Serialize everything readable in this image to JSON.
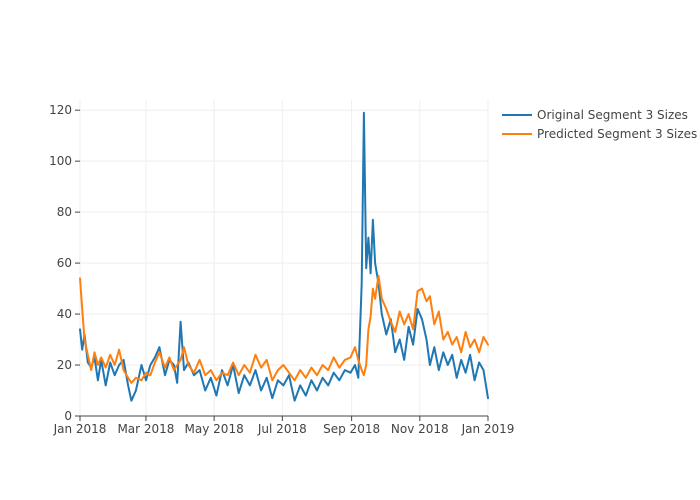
{
  "chart_data": {
    "type": "line",
    "title": "",
    "xlabel": "",
    "ylabel": "",
    "x_start": "2018-01-01",
    "x_end": "2019-01-01",
    "xlim": [
      "2018-01-01",
      "2019-01-01"
    ],
    "ylim": [
      0,
      124
    ],
    "grid": true,
    "legend_position": "top-right",
    "x_ticks": [
      {
        "date": "2018-01-01",
        "label": "Jan 2018"
      },
      {
        "date": "2018-03-01",
        "label": "Mar 2018"
      },
      {
        "date": "2018-05-01",
        "label": "May 2018"
      },
      {
        "date": "2018-07-01",
        "label": "Jul 2018"
      },
      {
        "date": "2018-09-01",
        "label": "Sep 2018"
      },
      {
        "date": "2018-11-01",
        "label": "Nov 2018"
      },
      {
        "date": "2019-01-01",
        "label": "Jan 2019"
      }
    ],
    "y_ticks": [
      0,
      20,
      40,
      60,
      80,
      100,
      120
    ],
    "series": [
      {
        "name": "Original Segment 3 Sizes",
        "color": "#1f77b4",
        "points": [
          [
            "2018-01-01",
            34
          ],
          [
            "2018-01-03",
            26
          ],
          [
            "2018-01-05",
            32
          ],
          [
            "2018-01-08",
            21
          ],
          [
            "2018-01-11",
            19
          ],
          [
            "2018-01-14",
            23
          ],
          [
            "2018-01-17",
            14
          ],
          [
            "2018-01-20",
            22
          ],
          [
            "2018-01-24",
            12
          ],
          [
            "2018-01-28",
            21
          ],
          [
            "2018-02-01",
            16
          ],
          [
            "2018-02-05",
            20
          ],
          [
            "2018-02-09",
            22
          ],
          [
            "2018-02-13",
            12
          ],
          [
            "2018-02-16",
            6
          ],
          [
            "2018-02-20",
            10
          ],
          [
            "2018-02-25",
            20
          ],
          [
            "2018-03-01",
            14
          ],
          [
            "2018-03-05",
            20
          ],
          [
            "2018-03-09",
            23
          ],
          [
            "2018-03-13",
            27
          ],
          [
            "2018-03-18",
            16
          ],
          [
            "2018-03-22",
            22
          ],
          [
            "2018-03-26",
            20
          ],
          [
            "2018-03-29",
            13
          ],
          [
            "2018-04-01",
            37
          ],
          [
            "2018-04-04",
            18
          ],
          [
            "2018-04-08",
            21
          ],
          [
            "2018-04-13",
            16
          ],
          [
            "2018-04-18",
            18
          ],
          [
            "2018-04-23",
            10
          ],
          [
            "2018-04-28",
            15
          ],
          [
            "2018-05-03",
            8
          ],
          [
            "2018-05-08",
            18
          ],
          [
            "2018-05-13",
            12
          ],
          [
            "2018-05-18",
            20
          ],
          [
            "2018-05-23",
            9
          ],
          [
            "2018-05-28",
            16
          ],
          [
            "2018-06-02",
            12
          ],
          [
            "2018-06-07",
            18
          ],
          [
            "2018-06-12",
            10
          ],
          [
            "2018-06-17",
            15
          ],
          [
            "2018-06-22",
            7
          ],
          [
            "2018-06-27",
            14
          ],
          [
            "2018-07-02",
            12
          ],
          [
            "2018-07-07",
            16
          ],
          [
            "2018-07-12",
            6
          ],
          [
            "2018-07-17",
            12
          ],
          [
            "2018-07-22",
            8
          ],
          [
            "2018-07-27",
            14
          ],
          [
            "2018-08-01",
            10
          ],
          [
            "2018-08-06",
            15
          ],
          [
            "2018-08-11",
            12
          ],
          [
            "2018-08-16",
            17
          ],
          [
            "2018-08-21",
            14
          ],
          [
            "2018-08-26",
            18
          ],
          [
            "2018-08-31",
            17
          ],
          [
            "2018-09-04",
            20
          ],
          [
            "2018-09-07",
            15
          ],
          [
            "2018-09-10",
            52
          ],
          [
            "2018-09-12",
            119
          ],
          [
            "2018-09-14",
            58
          ],
          [
            "2018-09-16",
            70
          ],
          [
            "2018-09-18",
            56
          ],
          [
            "2018-09-20",
            77
          ],
          [
            "2018-09-22",
            60
          ],
          [
            "2018-09-25",
            52
          ],
          [
            "2018-09-28",
            40
          ],
          [
            "2018-10-02",
            32
          ],
          [
            "2018-10-06",
            38
          ],
          [
            "2018-10-10",
            25
          ],
          [
            "2018-10-14",
            30
          ],
          [
            "2018-10-18",
            22
          ],
          [
            "2018-10-22",
            35
          ],
          [
            "2018-10-26",
            28
          ],
          [
            "2018-10-30",
            42
          ],
          [
            "2018-11-03",
            38
          ],
          [
            "2018-11-07",
            30
          ],
          [
            "2018-11-10",
            20
          ],
          [
            "2018-11-14",
            27
          ],
          [
            "2018-11-18",
            18
          ],
          [
            "2018-11-22",
            25
          ],
          [
            "2018-11-26",
            20
          ],
          [
            "2018-11-30",
            24
          ],
          [
            "2018-12-04",
            15
          ],
          [
            "2018-12-08",
            22
          ],
          [
            "2018-12-12",
            17
          ],
          [
            "2018-12-16",
            24
          ],
          [
            "2018-12-20",
            14
          ],
          [
            "2018-12-24",
            21
          ],
          [
            "2018-12-28",
            18
          ],
          [
            "2019-01-01",
            7
          ]
        ]
      },
      {
        "name": "Predicted Segment 3 Sizes",
        "color": "#ff7f0e",
        "points": [
          [
            "2018-01-01",
            54
          ],
          [
            "2018-01-03",
            42
          ],
          [
            "2018-01-05",
            30
          ],
          [
            "2018-01-08",
            24
          ],
          [
            "2018-01-11",
            18
          ],
          [
            "2018-01-14",
            25
          ],
          [
            "2018-01-17",
            20
          ],
          [
            "2018-01-20",
            23
          ],
          [
            "2018-01-24",
            19
          ],
          [
            "2018-01-28",
            24
          ],
          [
            "2018-02-01",
            20
          ],
          [
            "2018-02-05",
            26
          ],
          [
            "2018-02-09",
            18
          ],
          [
            "2018-02-13",
            15
          ],
          [
            "2018-02-16",
            13
          ],
          [
            "2018-02-20",
            15
          ],
          [
            "2018-02-25",
            14
          ],
          [
            "2018-03-01",
            17
          ],
          [
            "2018-03-05",
            16
          ],
          [
            "2018-03-09",
            21
          ],
          [
            "2018-03-13",
            25
          ],
          [
            "2018-03-18",
            19
          ],
          [
            "2018-03-22",
            23
          ],
          [
            "2018-03-26",
            18
          ],
          [
            "2018-03-29",
            20
          ],
          [
            "2018-04-01",
            22
          ],
          [
            "2018-04-04",
            27
          ],
          [
            "2018-04-08",
            20
          ],
          [
            "2018-04-13",
            17
          ],
          [
            "2018-04-18",
            22
          ],
          [
            "2018-04-23",
            16
          ],
          [
            "2018-04-28",
            18
          ],
          [
            "2018-05-03",
            14
          ],
          [
            "2018-05-08",
            17
          ],
          [
            "2018-05-13",
            16
          ],
          [
            "2018-05-18",
            21
          ],
          [
            "2018-05-23",
            16
          ],
          [
            "2018-05-28",
            20
          ],
          [
            "2018-06-02",
            17
          ],
          [
            "2018-06-07",
            24
          ],
          [
            "2018-06-12",
            19
          ],
          [
            "2018-06-17",
            22
          ],
          [
            "2018-06-22",
            14
          ],
          [
            "2018-06-27",
            18
          ],
          [
            "2018-07-02",
            20
          ],
          [
            "2018-07-07",
            17
          ],
          [
            "2018-07-12",
            14
          ],
          [
            "2018-07-17",
            18
          ],
          [
            "2018-07-22",
            15
          ],
          [
            "2018-07-27",
            19
          ],
          [
            "2018-08-01",
            16
          ],
          [
            "2018-08-06",
            20
          ],
          [
            "2018-08-11",
            18
          ],
          [
            "2018-08-16",
            23
          ],
          [
            "2018-08-21",
            19
          ],
          [
            "2018-08-26",
            22
          ],
          [
            "2018-08-31",
            23
          ],
          [
            "2018-09-04",
            27
          ],
          [
            "2018-09-07",
            22
          ],
          [
            "2018-09-10",
            18
          ],
          [
            "2018-09-12",
            16
          ],
          [
            "2018-09-14",
            20
          ],
          [
            "2018-09-16",
            34
          ],
          [
            "2018-09-18",
            39
          ],
          [
            "2018-09-20",
            50
          ],
          [
            "2018-09-22",
            46
          ],
          [
            "2018-09-25",
            55
          ],
          [
            "2018-09-28",
            46
          ],
          [
            "2018-10-02",
            42
          ],
          [
            "2018-10-06",
            37
          ],
          [
            "2018-10-10",
            33
          ],
          [
            "2018-10-14",
            41
          ],
          [
            "2018-10-18",
            36
          ],
          [
            "2018-10-22",
            40
          ],
          [
            "2018-10-26",
            34
          ],
          [
            "2018-10-30",
            49
          ],
          [
            "2018-11-03",
            50
          ],
          [
            "2018-11-07",
            45
          ],
          [
            "2018-11-10",
            47
          ],
          [
            "2018-11-14",
            36
          ],
          [
            "2018-11-18",
            41
          ],
          [
            "2018-11-22",
            30
          ],
          [
            "2018-11-26",
            33
          ],
          [
            "2018-11-30",
            28
          ],
          [
            "2018-12-04",
            31
          ],
          [
            "2018-12-08",
            25
          ],
          [
            "2018-12-12",
            33
          ],
          [
            "2018-12-16",
            27
          ],
          [
            "2018-12-20",
            30
          ],
          [
            "2018-12-24",
            25
          ],
          [
            "2018-12-28",
            31
          ],
          [
            "2019-01-01",
            28
          ]
        ]
      }
    ]
  }
}
